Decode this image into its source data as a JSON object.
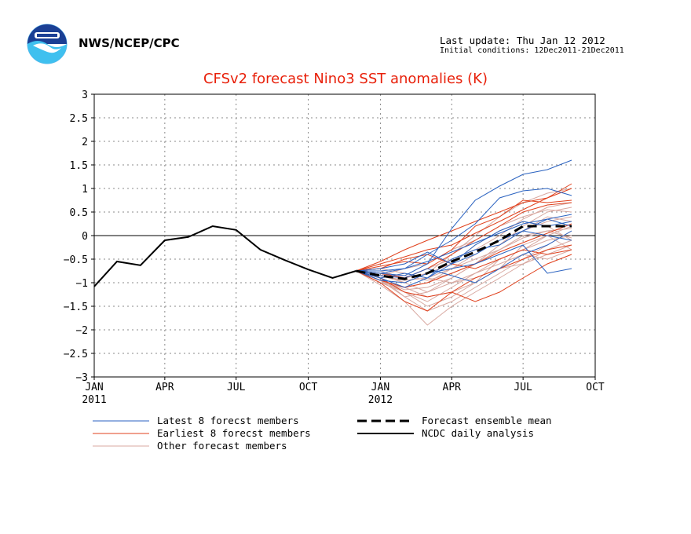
{
  "header": {
    "org": "NWS/NCEP/CPC",
    "last_update": "Last update: Thu Jan 12 2012",
    "initial_conditions": "Initial conditions: 12Dec2011-21Dec2011"
  },
  "colors": {
    "title": "#e8200a",
    "latest": "#2a62c0",
    "earliest": "#e0401c",
    "other": "#d8a8a0",
    "mean": "#000000",
    "analysis": "#000000"
  },
  "chart_data": {
    "type": "line",
    "title": "CFSv2 forecast Nino3 SST anomalies (K)",
    "ylim": [
      -3,
      3
    ],
    "yticks": [
      3,
      2.5,
      2,
      1.5,
      1,
      0.5,
      0,
      -0.5,
      -1,
      -1.5,
      -2,
      -2.5,
      -3
    ],
    "ytick_labels": [
      "3",
      "2.5",
      "2",
      "1.5",
      "1",
      "0.5",
      "0",
      "−0.5",
      "−1",
      "−1.5",
      "−2",
      "−2.5",
      "−3"
    ],
    "xlim": [
      "2011-01-01",
      "2012-10-01"
    ],
    "xticks": [
      {
        "date": "2011-01-01",
        "label": "JAN",
        "year": "2011"
      },
      {
        "date": "2011-04-01",
        "label": "APR",
        "year": ""
      },
      {
        "date": "2011-07-01",
        "label": "JUL",
        "year": ""
      },
      {
        "date": "2011-10-01",
        "label": "OCT",
        "year": ""
      },
      {
        "date": "2012-01-01",
        "label": "JAN",
        "year": "2012"
      },
      {
        "date": "2012-04-01",
        "label": "APR",
        "year": ""
      },
      {
        "date": "2012-07-01",
        "label": "JUL",
        "year": ""
      },
      {
        "date": "2012-10-01",
        "label": "OCT",
        "year": ""
      }
    ],
    "grid": true,
    "zero_line": true,
    "legend": [
      {
        "key": "latest",
        "label": "Latest 8 forecst members",
        "style": "thin"
      },
      {
        "key": "mean",
        "label": "Forecast ensemble mean",
        "style": "dashed"
      },
      {
        "key": "earliest",
        "label": "Earliest 8 forecst members",
        "style": "thin"
      },
      {
        "key": "analysis",
        "label": "NCDC daily analysis",
        "style": "solid"
      },
      {
        "key": "other",
        "label": "Other forecast members",
        "style": "thin"
      }
    ],
    "analysis": {
      "x": [
        "2011-01-01",
        "2011-01-30",
        "2011-03-01",
        "2011-04-01",
        "2011-05-01",
        "2011-06-01",
        "2011-07-01",
        "2011-08-01",
        "2011-09-01",
        "2011-10-01",
        "2011-11-01",
        "2011-12-01"
      ],
      "y": [
        -1.08,
        -0.55,
        -0.63,
        -0.1,
        -0.03,
        0.2,
        0.12,
        -0.3,
        -0.52,
        -0.72,
        -0.9,
        -0.75
      ]
    },
    "forecast_months": [
      "2011-12-01",
      "2012-01-01",
      "2012-02-01",
      "2012-03-01",
      "2012-04-01",
      "2012-05-01",
      "2012-06-01",
      "2012-07-01",
      "2012-08-01",
      "2012-09-01"
    ],
    "ensemble_mean": [
      -0.75,
      -0.85,
      -0.92,
      -0.8,
      -0.55,
      -0.35,
      -0.1,
      0.2,
      0.2,
      0.2
    ],
    "latest_members": [
      [
        -0.75,
        -0.8,
        -0.85,
        -0.6,
        0.15,
        0.75,
        1.05,
        1.3,
        1.4,
        1.6
      ],
      [
        -0.75,
        -0.75,
        -0.7,
        -0.4,
        -0.1,
        0.25,
        0.8,
        0.95,
        1.0,
        0.85
      ],
      [
        -0.75,
        -0.9,
        -1.1,
        -0.9,
        -0.6,
        -0.2,
        0.1,
        0.3,
        0.2,
        0.3
      ],
      [
        -0.75,
        -0.8,
        -0.7,
        -0.55,
        -0.35,
        -0.15,
        0.05,
        0.25,
        0.35,
        0.2
      ],
      [
        -0.75,
        -0.95,
        -1.0,
        -0.8,
        -0.7,
        -0.6,
        -0.4,
        -0.2,
        -0.8,
        -0.7
      ],
      [
        -0.75,
        -0.7,
        -0.6,
        -0.35,
        -0.6,
        -0.4,
        -0.1,
        0.1,
        0.0,
        -0.1
      ],
      [
        -0.75,
        -0.85,
        -0.9,
        -0.7,
        -0.85,
        -1.0,
        -0.7,
        -0.4,
        -0.2,
        0.1
      ],
      [
        -0.75,
        -0.9,
        -0.8,
        -0.9,
        -0.5,
        -0.3,
        -0.2,
        0.1,
        0.35,
        0.45
      ]
    ],
    "earliest_members": [
      [
        -0.75,
        -0.55,
        -0.3,
        -0.1,
        0.1,
        0.3,
        0.5,
        0.7,
        0.8,
        1.1
      ],
      [
        -0.75,
        -0.6,
        -0.45,
        -0.3,
        -0.2,
        0.05,
        0.3,
        0.55,
        0.8,
        1.0
      ],
      [
        -0.75,
        -0.9,
        -1.2,
        -1.3,
        -1.2,
        -1.4,
        -1.2,
        -0.9,
        -0.6,
        -0.4
      ],
      [
        -0.75,
        -1.0,
        -1.4,
        -1.6,
        -1.2,
        -0.9,
        -0.7,
        -0.5,
        -0.3,
        -0.2
      ],
      [
        -0.75,
        -0.8,
        -0.9,
        -0.7,
        -0.4,
        -0.1,
        0.2,
        0.5,
        0.65,
        0.7
      ],
      [
        -0.75,
        -0.7,
        -0.5,
        -0.4,
        -0.6,
        -0.7,
        -0.5,
        -0.3,
        -0.4,
        -0.3
      ],
      [
        -0.75,
        -0.95,
        -1.1,
        -1.0,
        -0.8,
        -0.6,
        -0.35,
        -0.15,
        0.05,
        0.25
      ],
      [
        -0.75,
        -0.65,
        -0.55,
        -0.6,
        -0.3,
        0.2,
        0.4,
        0.75,
        0.7,
        0.75
      ]
    ],
    "other_members": [
      [
        -0.75,
        -0.95,
        -1.3,
        -1.6,
        -1.4,
        -1.1,
        -0.8,
        -0.5,
        -0.2,
        0.1
      ],
      [
        -0.75,
        -1.05,
        -1.4,
        -1.9,
        -1.5,
        -1.2,
        -0.9,
        -0.6,
        -0.3,
        -0.1
      ],
      [
        -0.75,
        -0.85,
        -1.0,
        -1.2,
        -0.9,
        -0.6,
        -0.2,
        0.2,
        0.5,
        0.6
      ],
      [
        -0.75,
        -0.8,
        -0.9,
        -0.8,
        -0.4,
        0.0,
        0.4,
        0.7,
        0.9,
        1.0
      ],
      [
        -0.75,
        -0.9,
        -1.1,
        -1.0,
        -0.7,
        -0.4,
        -0.1,
        0.1,
        0.3,
        0.4
      ],
      [
        -0.75,
        -0.7,
        -0.8,
        -0.9,
        -1.0,
        -0.8,
        -0.5,
        -0.3,
        -0.1,
        0.0
      ],
      [
        -0.75,
        -1.0,
        -1.2,
        -1.4,
        -1.1,
        -0.8,
        -0.6,
        -0.4,
        -0.5,
        -0.3
      ],
      [
        -0.75,
        -0.85,
        -0.7,
        -0.6,
        -0.3,
        -0.1,
        0.2,
        0.4,
        0.55,
        0.5
      ],
      [
        -0.75,
        -0.95,
        -1.15,
        -1.1,
        -0.9,
        -0.6,
        -0.3,
        -0.05,
        0.1,
        0.15
      ],
      [
        -0.75,
        -0.8,
        -1.0,
        -0.8,
        -0.6,
        -0.2,
        0.1,
        0.3,
        0.2,
        -0.1
      ],
      [
        -0.75,
        -0.9,
        -1.3,
        -1.2,
        -1.0,
        -0.9,
        -0.7,
        -0.6,
        -0.4,
        -0.2
      ],
      [
        -0.75,
        -0.75,
        -0.9,
        -0.7,
        -0.5,
        -0.3,
        0.0,
        0.35,
        0.6,
        0.7
      ],
      [
        -0.75,
        -1.0,
        -1.1,
        -1.3,
        -1.2,
        -1.0,
        -0.5,
        -0.3,
        0.0,
        0.2
      ],
      [
        -0.75,
        -0.85,
        -0.95,
        -0.9,
        -0.7,
        -0.5,
        -0.3,
        0.0,
        0.1,
        -0.05
      ],
      [
        -0.75,
        -0.8,
        -0.85,
        -0.95,
        -0.8,
        -0.6,
        -0.2,
        0.1,
        0.4,
        0.3
      ],
      [
        -0.75,
        -0.95,
        -1.2,
        -1.5,
        -1.3,
        -1.0,
        -0.7,
        -0.2,
        0.0,
        -0.3
      ]
    ]
  }
}
